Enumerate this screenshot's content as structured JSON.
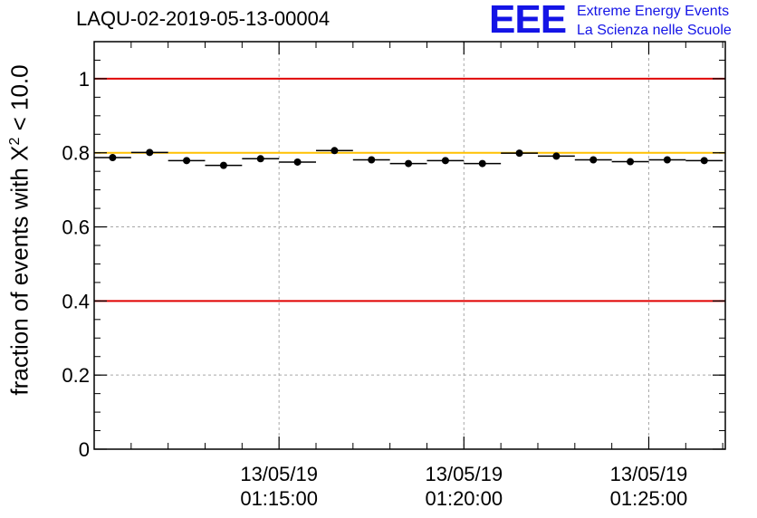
{
  "title": "LAQU-02-2019-05-13-00004",
  "logo": {
    "mark": "EEE",
    "line1": "Extreme Energy Events",
    "line2": "La Scienza nelle Scuole",
    "color": "#1414e6"
  },
  "chart_data": {
    "type": "scatter",
    "title": "LAQU-02-2019-05-13-00004",
    "ylabel_prefix": "fraction of events with ",
    "ylabel_symbol": "X",
    "ylabel_sup": "2",
    "ylabel_suffix": " < 10.0",
    "ylim": [
      0,
      1.1
    ],
    "yticks": [
      "0",
      "0.2",
      "0.4",
      "0.6",
      "0.8",
      "1"
    ],
    "ytick_values": [
      0,
      0.2,
      0.4,
      0.6,
      0.8,
      1.0
    ],
    "xlim_minutes": [
      10.0,
      27.07
    ],
    "xticks": [
      {
        "date": "13/05/19",
        "time": "01:15:00",
        "minute": 15
      },
      {
        "date": "13/05/19",
        "time": "01:20:00",
        "minute": 20
      },
      {
        "date": "13/05/19",
        "time": "01:25:00",
        "minute": 25
      }
    ],
    "bin_width_minutes": 1.0,
    "points": [
      {
        "x": 10.5,
        "y": 0.787
      },
      {
        "x": 11.5,
        "y": 0.801
      },
      {
        "x": 12.5,
        "y": 0.779
      },
      {
        "x": 13.5,
        "y": 0.766
      },
      {
        "x": 14.5,
        "y": 0.784
      },
      {
        "x": 15.5,
        "y": 0.775
      },
      {
        "x": 16.5,
        "y": 0.806
      },
      {
        "x": 17.5,
        "y": 0.781
      },
      {
        "x": 18.5,
        "y": 0.771
      },
      {
        "x": 19.5,
        "y": 0.779
      },
      {
        "x": 20.5,
        "y": 0.771
      },
      {
        "x": 21.5,
        "y": 0.799
      },
      {
        "x": 22.5,
        "y": 0.791
      },
      {
        "x": 23.5,
        "y": 0.781
      },
      {
        "x": 24.5,
        "y": 0.776
      },
      {
        "x": 25.5,
        "y": 0.781
      },
      {
        "x": 26.5,
        "y": 0.779
      }
    ],
    "reference_lines": [
      {
        "y": 1.0,
        "color": "#e00000"
      },
      {
        "y": 0.4,
        "color": "#e00000"
      },
      {
        "y": 0.8,
        "color": "#ffc000"
      }
    ],
    "grid": true
  }
}
